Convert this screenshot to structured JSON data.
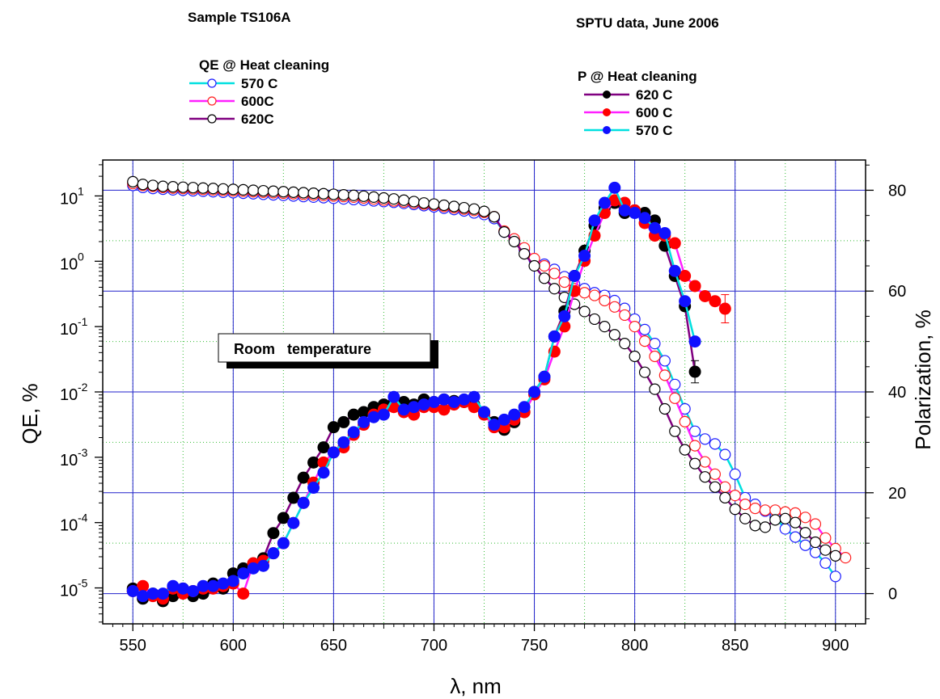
{
  "chart_data": {
    "type": "scatter",
    "header_left": "Sample TS106A",
    "header_right": "SPTU data, June 2006",
    "annotation": "Room   temperature",
    "xlabel": "λ, nm",
    "ylabel_left": "QE, %",
    "ylabel_right": "Polarization,  %",
    "xlim": [
      535,
      915
    ],
    "ylim_left_log10": [
      -5.55,
      1.55
    ],
    "ylim_right": [
      -6,
      86
    ],
    "x_ticks": [
      550,
      600,
      650,
      700,
      750,
      800,
      850,
      900
    ],
    "y_left_ticks": [
      {
        "value": 10,
        "base": "10",
        "exp": "1"
      },
      {
        "value": 1,
        "base": "10",
        "exp": "0"
      },
      {
        "value": 0.1,
        "base": "10",
        "exp": "-1"
      },
      {
        "value": 0.01,
        "base": "10",
        "exp": "-2"
      },
      {
        "value": 0.001,
        "base": "10",
        "exp": "-3"
      },
      {
        "value": 0.0001,
        "base": "10",
        "exp": "-4"
      },
      {
        "value": 1e-05,
        "base": "10",
        "exp": "-5"
      }
    ],
    "y_right_ticks": [
      0,
      20,
      40,
      60,
      80
    ],
    "grid": true,
    "legend_qe": {
      "title": "QE @ Heat cleaning",
      "entries": [
        {
          "label": "570 C",
          "line_color": "#00e0e0",
          "marker_color": "#1c1cff"
        },
        {
          "label": "600C",
          "line_color": "#ff20ff",
          "marker_color": "#ff2020"
        },
        {
          "label": "620C",
          "line_color": "#800080",
          "marker_color": "#000000"
        }
      ]
    },
    "legend_p": {
      "title": "P @ Heat cleaning",
      "entries": [
        {
          "label": "620 C",
          "line_color": "#800080",
          "marker_color": "#000000"
        },
        {
          "label": "600 C",
          "line_color": "#ff20ff",
          "marker_color": "#ff0000"
        },
        {
          "label": "570 C",
          "line_color": "#00e0e0",
          "marker_color": "#1010ff"
        }
      ]
    },
    "series_qe": [
      {
        "name": "570 C",
        "axis": "left",
        "marker": "open-circle",
        "line_color": "#00e0e0",
        "marker_color": "#1c1cff",
        "x": [
          550,
          555,
          560,
          565,
          570,
          575,
          580,
          585,
          590,
          595,
          600,
          605,
          610,
          615,
          620,
          625,
          630,
          635,
          640,
          645,
          650,
          655,
          660,
          665,
          670,
          675,
          680,
          685,
          690,
          695,
          700,
          705,
          710,
          715,
          720,
          725,
          730,
          735,
          740,
          745,
          750,
          755,
          760,
          765,
          770,
          775,
          780,
          785,
          790,
          795,
          800,
          805,
          810,
          815,
          820,
          825,
          830,
          835,
          840,
          845,
          850,
          855,
          860,
          865,
          870,
          875,
          880,
          885,
          890,
          895,
          900
        ],
        "y": [
          14.5,
          13.5,
          13,
          12.7,
          12.4,
          12.2,
          12,
          11.8,
          11.6,
          11.4,
          11.2,
          11,
          10.8,
          10.6,
          10.4,
          10.2,
          10,
          9.8,
          9.6,
          9.4,
          9.2,
          9,
          8.8,
          8.6,
          8.4,
          8.2,
          8,
          7.7,
          7.4,
          7.1,
          6.8,
          6.5,
          6.2,
          5.9,
          5.5,
          5.2,
          4.5,
          2.8,
          2.1,
          1.5,
          1.05,
          0.9,
          0.75,
          0.58,
          0.45,
          0.38,
          0.33,
          0.3,
          0.25,
          0.19,
          0.13,
          0.09,
          0.055,
          0.03,
          0.013,
          0.0055,
          0.0025,
          0.0019,
          0.0016,
          0.0011,
          0.00055,
          0.00024,
          0.00019,
          0.00015,
          0.00012,
          8e-05,
          6e-05,
          4.5e-05,
          3.5e-05,
          2.4e-05,
          1.5e-05
        ]
      },
      {
        "name": "600C",
        "axis": "left",
        "marker": "open-circle",
        "line_color": "#ff20ff",
        "marker_color": "#ff2020",
        "x": [
          550,
          555,
          560,
          565,
          570,
          575,
          580,
          585,
          590,
          595,
          600,
          605,
          610,
          615,
          620,
          625,
          630,
          635,
          640,
          645,
          650,
          655,
          660,
          665,
          670,
          675,
          680,
          685,
          690,
          695,
          700,
          705,
          710,
          715,
          720,
          725,
          730,
          735,
          740,
          745,
          750,
          755,
          760,
          765,
          770,
          775,
          780,
          785,
          790,
          795,
          800,
          805,
          810,
          815,
          820,
          825,
          830,
          835,
          840,
          845,
          850,
          855,
          860,
          865,
          870,
          875,
          880,
          885,
          890,
          895,
          900,
          905
        ],
        "y": [
          15.5,
          14.5,
          14,
          13.5,
          13.2,
          13,
          12.8,
          12.6,
          12.4,
          12.2,
          12,
          11.8,
          11.6,
          11.4,
          11.2,
          11,
          10.8,
          10.6,
          10.4,
          10.2,
          10,
          9.8,
          9.6,
          9.3,
          9,
          8.7,
          8.4,
          8.1,
          7.8,
          7.5,
          7.2,
          6.9,
          6.6,
          6.3,
          6,
          5.6,
          4.8,
          2.9,
          2.2,
          1.6,
          1.1,
          0.85,
          0.65,
          0.48,
          0.38,
          0.33,
          0.3,
          0.25,
          0.2,
          0.15,
          0.1,
          0.06,
          0.035,
          0.018,
          0.008,
          0.0035,
          0.0015,
          0.00085,
          0.00055,
          0.00035,
          0.00026,
          0.00019,
          0.000165,
          0.000155,
          0.000155,
          0.000145,
          0.00014,
          0.00012,
          9.5e-05,
          5.8e-05,
          4e-05,
          2.9e-05
        ]
      },
      {
        "name": "620C",
        "axis": "left",
        "marker": "open-circle",
        "line_color": "#800080",
        "marker_color": "#000000",
        "x": [
          550,
          555,
          560,
          565,
          570,
          575,
          580,
          585,
          590,
          595,
          600,
          605,
          610,
          615,
          620,
          625,
          630,
          635,
          640,
          645,
          650,
          655,
          660,
          665,
          670,
          675,
          680,
          685,
          690,
          695,
          700,
          705,
          710,
          715,
          720,
          725,
          730,
          735,
          740,
          745,
          750,
          755,
          760,
          765,
          770,
          775,
          780,
          785,
          790,
          795,
          800,
          805,
          810,
          815,
          820,
          825,
          830,
          835,
          840,
          845,
          850,
          855,
          860,
          865,
          870,
          875,
          880,
          885,
          890,
          895,
          900
        ],
        "y": [
          16.5,
          15,
          14.5,
          14,
          13.8,
          13.6,
          13.4,
          13.2,
          13,
          12.8,
          12.6,
          12.4,
          12.2,
          12,
          11.8,
          11.6,
          11.4,
          11.2,
          11,
          10.8,
          10.6,
          10.4,
          10.2,
          9.9,
          9.6,
          9.3,
          9,
          8.6,
          8.2,
          7.8,
          7.5,
          7.2,
          6.9,
          6.6,
          6.3,
          5.8,
          4.8,
          2.8,
          2,
          1.3,
          0.85,
          0.55,
          0.38,
          0.28,
          0.22,
          0.17,
          0.13,
          0.1,
          0.075,
          0.055,
          0.035,
          0.02,
          0.011,
          0.0055,
          0.0025,
          0.0013,
          0.0008,
          0.0005,
          0.00035,
          0.00024,
          0.00016,
          0.000115,
          9e-05,
          8.5e-05,
          0.00011,
          0.000115,
          0.0001,
          7e-05,
          5e-05,
          3.8e-05,
          3.1e-05
        ]
      }
    ],
    "series_p": [
      {
        "name": "620 C",
        "axis": "right",
        "marker": "filled-circle",
        "line_color": "#800080",
        "marker_color": "#000000",
        "x": [
          550,
          555,
          560,
          565,
          570,
          575,
          580,
          585,
          590,
          595,
          600,
          605,
          610,
          615,
          620,
          625,
          630,
          635,
          640,
          645,
          650,
          655,
          660,
          665,
          670,
          675,
          680,
          685,
          690,
          695,
          700,
          705,
          710,
          715,
          720,
          725,
          730,
          735,
          740,
          745,
          750,
          755,
          760,
          765,
          770,
          775,
          780,
          785,
          790,
          795,
          800,
          805,
          810,
          815,
          820,
          825,
          830
        ],
        "y": [
          1,
          -1,
          0,
          -1.5,
          -0.5,
          1,
          -0.5,
          0,
          2,
          1,
          4,
          5,
          6,
          7,
          12,
          15,
          19,
          23,
          26,
          29,
          33,
          34,
          35.5,
          36,
          37,
          37.5,
          37.8,
          38,
          37.5,
          38.5,
          38,
          38.5,
          38.2,
          38,
          37.5,
          36,
          34,
          32.5,
          34,
          36,
          40,
          43,
          51,
          56,
          63,
          68,
          73,
          76.5,
          77.5,
          75.5,
          76,
          75.5,
          74,
          69,
          63,
          57,
          44
        ]
      },
      {
        "name": "600 C",
        "axis": "right",
        "marker": "filled-circle",
        "line_color": "#ff20ff",
        "marker_color": "#ff0000",
        "x": [
          550,
          555,
          560,
          565,
          570,
          575,
          580,
          585,
          590,
          595,
          600,
          605,
          610,
          615,
          620,
          625,
          630,
          635,
          640,
          645,
          650,
          655,
          660,
          665,
          670,
          675,
          680,
          685,
          690,
          695,
          700,
          705,
          710,
          715,
          720,
          725,
          730,
          735,
          740,
          745,
          750,
          755,
          760,
          765,
          770,
          775,
          780,
          785,
          790,
          795,
          800,
          805,
          810,
          815,
          820,
          825,
          830,
          835,
          840,
          845
        ],
        "y": [
          0.5,
          1.5,
          -0.5,
          -1,
          1,
          0,
          0.5,
          1,
          1,
          1.5,
          2,
          0,
          6,
          6.5,
          8,
          10,
          14,
          18,
          22,
          26,
          28,
          29,
          31.5,
          33.5,
          35.5,
          36.5,
          37,
          36,
          35.5,
          37,
          37,
          36.5,
          37.5,
          38,
          37,
          35.5,
          33,
          33,
          34.5,
          36,
          39.5,
          42.5,
          48,
          53,
          60,
          66,
          71,
          75.5,
          78,
          77.5,
          76,
          73.5,
          71,
          71,
          69.5,
          63,
          61,
          59,
          58,
          56.5
        ]
      },
      {
        "name": "570 C",
        "axis": "right",
        "marker": "filled-circle",
        "line_color": "#00e0e0",
        "marker_color": "#1010ff",
        "x": [
          550,
          555,
          560,
          565,
          570,
          575,
          580,
          585,
          590,
          595,
          600,
          605,
          610,
          615,
          620,
          625,
          630,
          635,
          640,
          645,
          650,
          655,
          660,
          665,
          670,
          675,
          680,
          685,
          690,
          695,
          700,
          705,
          710,
          715,
          720,
          725,
          730,
          735,
          740,
          745,
          750,
          755,
          760,
          765,
          770,
          775,
          780,
          785,
          790,
          795,
          800,
          805,
          810,
          815,
          820,
          825,
          830
        ],
        "y": [
          0.5,
          -0.5,
          0,
          0,
          1.5,
          1,
          0.5,
          1.5,
          1.5,
          2,
          2.5,
          4,
          5,
          5.5,
          8,
          10,
          14,
          18,
          21,
          24,
          28,
          30,
          32,
          34,
          35,
          35.5,
          39,
          36.5,
          37,
          37.5,
          38,
          38.5,
          38,
          38.5,
          39,
          36,
          33.5,
          34.5,
          35.5,
          37,
          40,
          43,
          51,
          55,
          63,
          67,
          74,
          77.5,
          80.5,
          76,
          75.5,
          74.5,
          72.5,
          71.5,
          64,
          58,
          50
        ]
      }
    ]
  }
}
